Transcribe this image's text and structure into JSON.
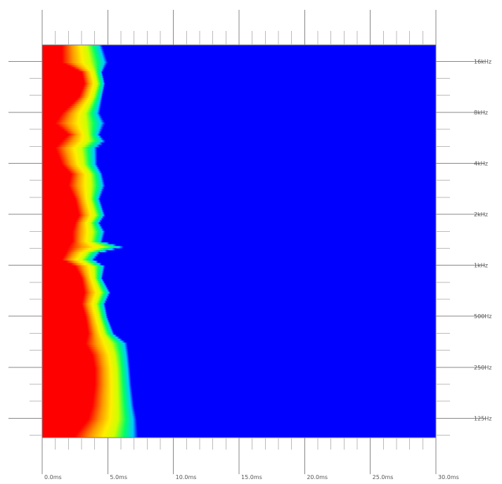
{
  "chart_data": {
    "type": "heatmap",
    "title": "",
    "xlabel": "",
    "ylabel": "",
    "x_scale": "linear",
    "y_scale": "log2",
    "xlim_ms": [
      0,
      30
    ],
    "ylim_hz": [
      96,
      20000
    ],
    "x_ticks": [
      {
        "value": 0,
        "label": "0.0ms"
      },
      {
        "value": 5,
        "label": "5.0ms"
      },
      {
        "value": 10,
        "label": "10.0ms"
      },
      {
        "value": 15,
        "label": "15.0ms"
      },
      {
        "value": 20,
        "label": "20.0ms"
      },
      {
        "value": 25,
        "label": "25.0ms"
      },
      {
        "value": 30,
        "label": "30.0ms"
      }
    ],
    "y_ticks": [
      {
        "value": 16000,
        "label": "16kHz"
      },
      {
        "value": 8000,
        "label": "8kHz"
      },
      {
        "value": 4000,
        "label": "4kHz"
      },
      {
        "value": 2000,
        "label": "2kHz"
      },
      {
        "value": 1000,
        "label": "1kHz"
      },
      {
        "value": 500,
        "label": "500Hz"
      },
      {
        "value": 250,
        "label": "250Hz"
      },
      {
        "value": 125,
        "label": "125Hz"
      }
    ],
    "colormap": [
      "#0000ff",
      "#00ccff",
      "#00ff66",
      "#ccff00",
      "#ffee00",
      "#ff9900",
      "#ff0000"
    ],
    "background_color": "#0000ff",
    "decay_profile": [
      {
        "freq_hz": 20000,
        "red_end_ms": 1.5,
        "decay_end_ms": 4.6
      },
      {
        "freq_hz": 16000,
        "red_end_ms": 1.5,
        "decay_end_ms": 5.0
      },
      {
        "freq_hz": 14000,
        "red_end_ms": 3.0,
        "decay_end_ms": 4.6
      },
      {
        "freq_hz": 12000,
        "red_end_ms": 3.2,
        "decay_end_ms": 4.8
      },
      {
        "freq_hz": 10000,
        "red_end_ms": 2.8,
        "decay_end_ms": 4.6
      },
      {
        "freq_hz": 8000,
        "red_end_ms": 1.5,
        "decay_end_ms": 4.4
      },
      {
        "freq_hz": 7000,
        "red_end_ms": 1.0,
        "decay_end_ms": 4.8
      },
      {
        "freq_hz": 6000,
        "red_end_ms": 2.0,
        "decay_end_ms": 4.4
      },
      {
        "freq_hz": 5500,
        "red_end_ms": 1.5,
        "decay_end_ms": 4.8
      },
      {
        "freq_hz": 5000,
        "red_end_ms": 1.0,
        "decay_end_ms": 4.2
      },
      {
        "freq_hz": 4000,
        "red_end_ms": 1.5,
        "decay_end_ms": 4.2
      },
      {
        "freq_hz": 3500,
        "red_end_ms": 2.2,
        "decay_end_ms": 4.6
      },
      {
        "freq_hz": 3000,
        "red_end_ms": 2.0,
        "decay_end_ms": 4.8
      },
      {
        "freq_hz": 2500,
        "red_end_ms": 2.5,
        "decay_end_ms": 4.4
      },
      {
        "freq_hz": 2000,
        "red_end_ms": 2.8,
        "decay_end_ms": 4.8
      },
      {
        "freq_hz": 1800,
        "red_end_ms": 2.5,
        "decay_end_ms": 4.4
      },
      {
        "freq_hz": 1600,
        "red_end_ms": 2.3,
        "decay_end_ms": 4.8
      },
      {
        "freq_hz": 1400,
        "red_end_ms": 2.3,
        "decay_end_ms": 4.6
      },
      {
        "freq_hz": 1300,
        "red_end_ms": 2.0,
        "decay_end_ms": 6.2
      },
      {
        "freq_hz": 1200,
        "red_end_ms": 1.8,
        "decay_end_ms": 4.4
      },
      {
        "freq_hz": 1100,
        "red_end_ms": 1.5,
        "decay_end_ms": 4.0
      },
      {
        "freq_hz": 1000,
        "red_end_ms": 2.5,
        "decay_end_ms": 4.8
      },
      {
        "freq_hz": 850,
        "red_end_ms": 3.0,
        "decay_end_ms": 4.6
      },
      {
        "freq_hz": 700,
        "red_end_ms": 3.2,
        "decay_end_ms": 5.2
      },
      {
        "freq_hz": 600,
        "red_end_ms": 3.0,
        "decay_end_ms": 4.8
      },
      {
        "freq_hz": 500,
        "red_end_ms": 3.3,
        "decay_end_ms": 5.0
      },
      {
        "freq_hz": 400,
        "red_end_ms": 3.5,
        "decay_end_ms": 5.5
      },
      {
        "freq_hz": 350,
        "red_end_ms": 3.3,
        "decay_end_ms": 6.5
      },
      {
        "freq_hz": 300,
        "red_end_ms": 3.8,
        "decay_end_ms": 6.6
      },
      {
        "freq_hz": 250,
        "red_end_ms": 4.0,
        "decay_end_ms": 6.7
      },
      {
        "freq_hz": 200,
        "red_end_ms": 4.0,
        "decay_end_ms": 6.8
      },
      {
        "freq_hz": 150,
        "red_end_ms": 3.8,
        "decay_end_ms": 7.0
      },
      {
        "freq_hz": 125,
        "red_end_ms": 3.5,
        "decay_end_ms": 7.2
      },
      {
        "freq_hz": 100,
        "red_end_ms": 2.5,
        "decay_end_ms": 7.3
      },
      {
        "freq_hz": 96,
        "red_end_ms": 2.0,
        "decay_end_ms": 7.3
      }
    ]
  }
}
